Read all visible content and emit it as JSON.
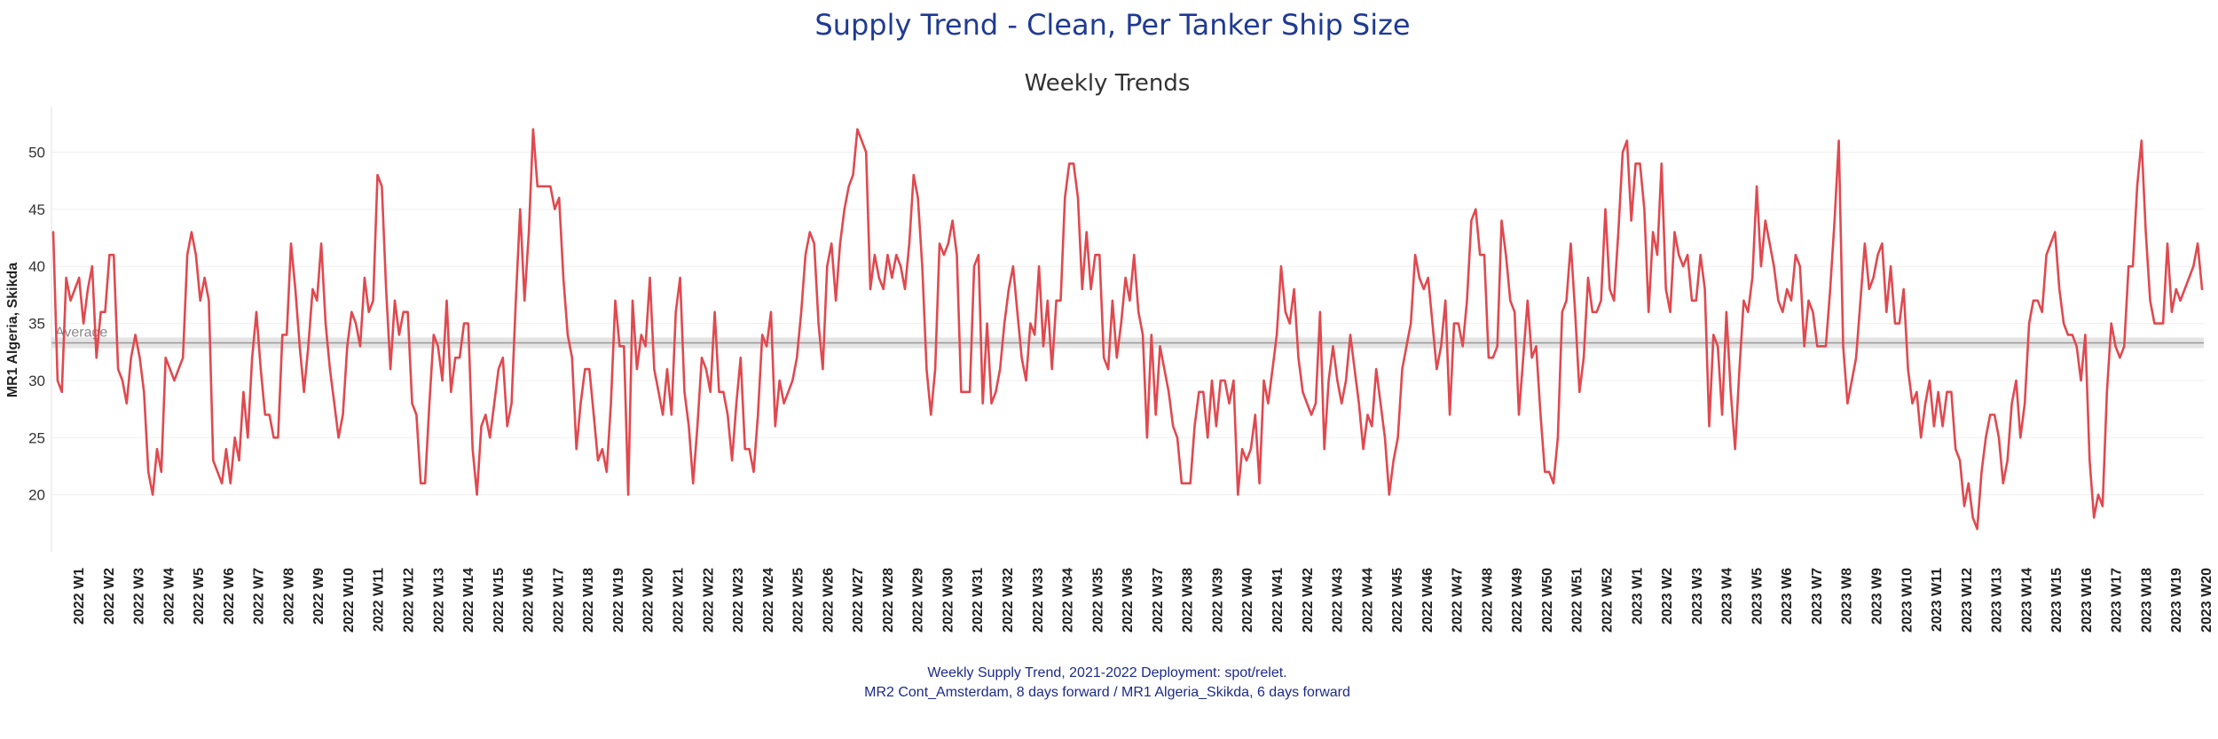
{
  "chart_data": {
    "type": "line",
    "title": "Supply Trend - Clean, Per Tanker Ship Size",
    "subtitle": "Weekly Trends",
    "ylabel": "MR1 Algeria, Skikda",
    "ylim": [
      15,
      54
    ],
    "yticks": [
      20,
      25,
      30,
      35,
      40,
      45,
      50
    ],
    "average": {
      "label": "Average",
      "value": 33.3
    },
    "colors": {
      "line": "#e0494f",
      "grid": "#efefef",
      "average": "#9a9a9a",
      "band": "#cfcfcf"
    },
    "week_labels": [
      "2022 W1",
      "2022 W2",
      "2022 W3",
      "2022 W4",
      "2022 W5",
      "2022 W6",
      "2022 W7",
      "2022 W8",
      "2022 W9",
      "2022 W10",
      "2022 W11",
      "2022 W12",
      "2022 W13",
      "2022 W14",
      "2022 W15",
      "2022 W16",
      "2022 W17",
      "2022 W18",
      "2022 W19",
      "2022 W20",
      "2022 W21",
      "2022 W22",
      "2022 W23",
      "2022 W24",
      "2022 W25",
      "2022 W26",
      "2022 W27",
      "2022 W28",
      "2022 W29",
      "2022 W30",
      "2022 W31",
      "2022 W32",
      "2022 W33",
      "2022 W34",
      "2022 W35",
      "2022 W36",
      "2022 W37",
      "2022 W38",
      "2022 W39",
      "2022 W40",
      "2022 W41",
      "2022 W42",
      "2022 W43",
      "2022 W44",
      "2022 W45",
      "2022 W46",
      "2022 W47",
      "2022 W48",
      "2022 W49",
      "2022 W50",
      "2022 W51",
      "2022 W52",
      "2023 W1",
      "2023 W2",
      "2023 W3",
      "2023 W4",
      "2023 W5",
      "2023 W6",
      "2023 W7",
      "2023 W8",
      "2023 W9",
      "2023 W10",
      "2023 W11",
      "2023 W12",
      "2023 W13",
      "2023 W14",
      "2023 W15",
      "2023 W16",
      "2023 W17",
      "2023 W18",
      "2023 W19",
      "2023 W20"
    ],
    "series": [
      {
        "name": "MR1 Algeria, Skikda",
        "values": [
          43,
          30,
          29,
          39,
          37,
          38,
          39,
          35,
          38,
          40,
          32,
          36,
          36,
          41,
          41,
          31,
          30,
          28,
          32,
          34,
          32,
          29,
          22,
          20,
          24,
          22,
          32,
          31,
          30,
          31,
          32,
          41,
          43,
          41,
          37,
          39,
          37,
          23,
          22,
          21,
          24,
          21,
          25,
          23,
          29,
          25,
          32,
          36,
          31,
          27,
          27,
          25,
          25,
          34,
          34,
          42,
          38,
          33,
          29,
          33,
          38,
          37,
          42,
          35,
          31,
          28,
          25,
          27,
          33,
          36,
          35,
          33,
          39,
          36,
          37,
          48,
          47,
          38,
          31,
          37,
          34,
          36,
          36,
          28,
          27,
          21,
          21,
          28,
          34,
          33,
          30,
          37,
          29,
          32,
          32,
          35,
          35,
          24,
          20,
          26,
          27,
          25,
          28,
          31,
          32,
          26,
          28,
          37,
          45,
          37,
          43,
          52,
          47,
          47,
          47,
          47,
          45,
          46,
          39,
          34,
          32,
          24,
          28,
          31,
          31,
          27,
          23,
          24,
          22,
          28,
          37,
          33,
          33,
          20,
          37,
          31,
          34,
          33,
          39,
          31,
          29,
          27,
          31,
          27,
          36,
          39,
          29,
          26,
          21,
          26,
          32,
          31,
          29,
          36,
          29,
          29,
          27,
          23,
          28,
          32,
          24,
          24,
          22,
          27,
          34,
          33,
          36,
          26,
          30,
          28,
          29,
          30,
          32,
          36,
          41,
          43,
          42,
          35,
          31,
          40,
          42,
          37,
          42,
          45,
          47,
          48,
          52,
          51,
          50,
          38,
          41,
          39,
          38,
          41,
          39,
          41,
          40,
          38,
          42,
          48,
          46,
          40,
          31,
          27,
          31,
          42,
          41,
          42,
          44,
          41,
          29,
          29,
          29,
          40,
          41,
          28,
          35,
          28,
          29,
          31,
          35,
          38,
          40,
          36,
          32,
          30,
          35,
          34,
          40,
          33,
          37,
          31,
          37,
          37,
          46,
          49,
          49,
          46,
          38,
          43,
          38,
          41,
          41,
          32,
          31,
          37,
          32,
          35,
          39,
          37,
          41,
          36,
          34,
          25,
          34,
          27,
          33,
          31,
          29,
          26,
          25,
          21,
          21,
          21,
          26,
          29,
          29,
          25,
          30,
          26,
          30,
          30,
          28,
          30,
          20,
          24,
          23,
          24,
          27,
          21,
          30,
          28,
          31,
          34,
          40,
          36,
          35,
          38,
          32,
          29,
          28,
          27,
          28,
          36,
          24,
          30,
          33,
          30,
          28,
          30,
          34,
          31,
          28,
          24,
          27,
          26,
          31,
          28,
          25,
          20,
          23,
          25,
          31,
          33,
          35,
          41,
          39,
          38,
          39,
          35,
          31,
          33,
          37,
          27,
          35,
          35,
          33,
          37,
          44,
          45,
          41,
          41,
          32,
          32,
          33,
          44,
          41,
          37,
          36,
          27,
          32,
          37,
          32,
          33,
          27,
          22,
          22,
          21,
          25,
          36,
          37,
          42,
          36,
          29,
          32,
          39,
          36,
          36,
          37,
          45,
          38,
          37,
          43,
          50,
          51,
          44,
          49,
          49,
          45,
          36,
          43,
          41,
          49,
          38,
          36,
          43,
          41,
          40,
          41,
          37,
          37,
          41,
          38,
          26,
          34,
          33,
          27,
          36,
          29,
          24,
          31,
          37,
          36,
          39,
          47,
          40,
          44,
          42,
          40,
          37,
          36,
          38,
          37,
          41,
          40,
          33,
          37,
          36,
          33,
          33,
          33,
          38,
          44,
          51,
          33,
          28,
          30,
          32,
          37,
          42,
          38,
          39,
          41,
          42,
          36,
          40,
          35,
          35,
          38,
          31,
          28,
          29,
          25,
          28,
          30,
          26,
          29,
          26,
          29,
          29,
          24,
          23,
          19,
          21,
          18,
          17,
          22,
          25,
          27,
          27,
          25,
          21,
          23,
          28,
          30,
          25,
          28,
          35,
          37,
          37,
          36,
          41,
          42,
          43,
          38,
          35,
          34,
          34,
          33,
          30,
          34,
          23,
          18,
          20,
          19,
          29,
          35,
          33,
          32,
          33,
          40,
          40,
          47,
          51,
          43,
          37,
          35,
          35,
          35,
          42,
          36,
          38,
          37,
          38,
          39,
          40,
          42,
          38
        ]
      }
    ],
    "footnote_line1": "Weekly Supply Trend, 2021-2022 Deployment: spot/relet.",
    "footnote_line2": "MR2 Cont_Amsterdam, 8 days forward / MR1 Algeria_Skikda, 6 days forward"
  }
}
